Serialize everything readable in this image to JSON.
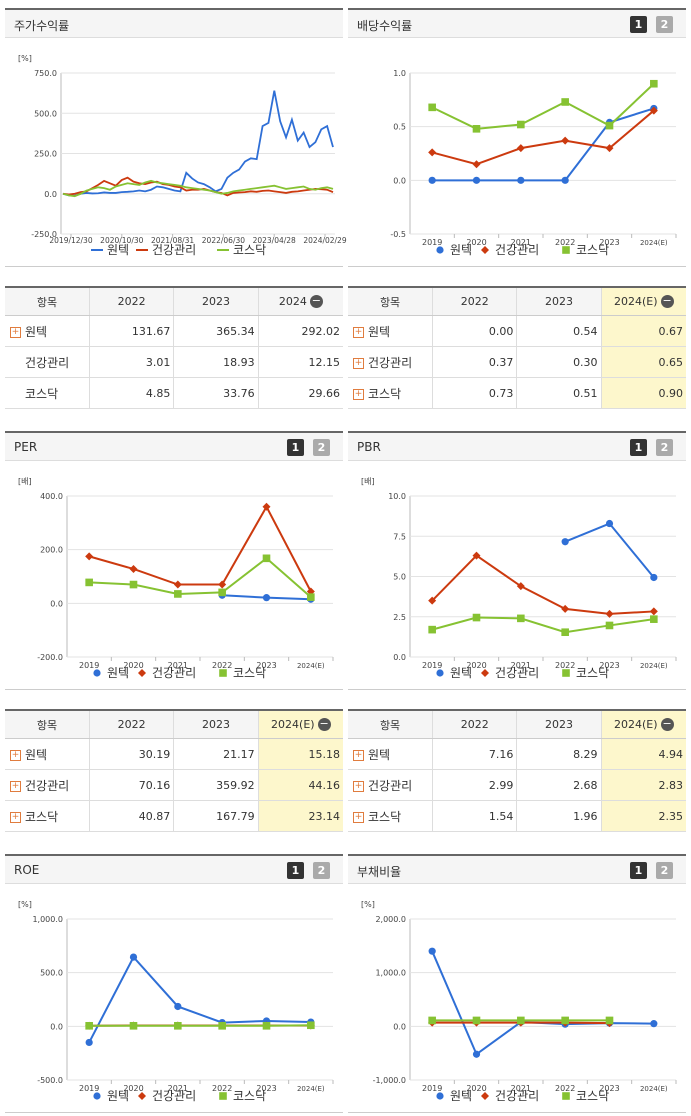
{
  "panels": [
    {
      "id": "stock",
      "title": "주가수익률",
      "buttons": []
    },
    {
      "id": "div",
      "title": "배당수익률",
      "buttons": [
        "1",
        "2"
      ]
    },
    {
      "id": "per",
      "title": "PER",
      "buttons": [
        "1",
        "2"
      ]
    },
    {
      "id": "pbr",
      "title": "PBR",
      "buttons": [
        "1",
        "2"
      ]
    },
    {
      "id": "roe",
      "title": "ROE",
      "buttons": [
        "1",
        "2"
      ]
    },
    {
      "id": "debt",
      "title": "부채비율",
      "buttons": [
        "1",
        "2"
      ]
    }
  ],
  "legend": [
    "원텍",
    "건강관리",
    "코스닥"
  ],
  "colors": {
    "원텍": "#2f6fd6",
    "건강관리": "#cc3a0f",
    "코스닥": "#86c232"
  },
  "chart_data": [
    {
      "id": "stock",
      "type": "line",
      "unit": "[%]",
      "ylim": [
        -250,
        750
      ],
      "yticks": [
        "750.0",
        "500.0",
        "250.0",
        "0.0",
        "-250.0"
      ],
      "x_labels": [
        "2019/12/30",
        "2020/10/30",
        "2021/08/31",
        "2022/06/30",
        "2023/04/28",
        "2024/02/29"
      ],
      "series": [
        {
          "name": "원텍",
          "values": [
            0,
            -10,
            -12,
            0,
            5,
            2,
            3,
            8,
            5,
            5,
            10,
            12,
            15,
            20,
            15,
            25,
            45,
            40,
            30,
            20,
            15,
            130,
            95,
            70,
            60,
            40,
            15,
            30,
            100,
            130,
            150,
            200,
            220,
            215,
            420,
            440,
            640,
            450,
            350,
            460,
            330,
            380,
            290,
            320,
            400,
            420,
            290
          ]
        },
        {
          "name": "건강관리",
          "values": [
            0,
            -5,
            0,
            10,
            15,
            35,
            55,
            80,
            65,
            50,
            85,
            100,
            75,
            65,
            60,
            70,
            75,
            60,
            55,
            45,
            40,
            20,
            25,
            25,
            30,
            20,
            10,
            5,
            -10,
            5,
            8,
            10,
            15,
            12,
            18,
            20,
            15,
            10,
            5,
            12,
            15,
            20,
            25,
            30,
            28,
            25,
            10
          ]
        },
        {
          "name": "코스닥",
          "values": [
            0,
            -10,
            -15,
            0,
            20,
            30,
            40,
            35,
            25,
            45,
            55,
            65,
            60,
            55,
            70,
            80,
            70,
            65,
            60,
            55,
            50,
            40,
            35,
            30,
            25,
            20,
            10,
            0,
            5,
            15,
            20,
            25,
            30,
            35,
            40,
            45,
            50,
            40,
            30,
            35,
            40,
            45,
            30,
            25,
            35,
            40,
            30
          ]
        }
      ]
    },
    {
      "id": "div",
      "type": "line",
      "ylim": [
        -0.5,
        1.0
      ],
      "yticks": [
        "1.0",
        "0.5",
        "0.0",
        "-0.5"
      ],
      "categories": [
        "2019",
        "2020",
        "2021",
        "2022",
        "2023",
        "2024(E)"
      ],
      "series": [
        {
          "name": "원텍",
          "values": [
            0.0,
            0.0,
            0.0,
            0.0,
            0.54,
            0.67
          ]
        },
        {
          "name": "건강관리",
          "values": [
            0.26,
            0.15,
            0.3,
            0.37,
            0.3,
            0.65
          ]
        },
        {
          "name": "코스닥",
          "values": [
            0.68,
            0.48,
            0.52,
            0.73,
            0.51,
            0.9
          ]
        }
      ]
    },
    {
      "id": "per",
      "type": "line",
      "unit": "[배]",
      "ylim": [
        -200,
        400
      ],
      "yticks": [
        "400.0",
        "200.0",
        "0.0",
        "-200.0"
      ],
      "categories": [
        "2019",
        "2020",
        "2021",
        "2022",
        "2023",
        "2024(E)"
      ],
      "series": [
        {
          "name": "원텍",
          "values": [
            null,
            null,
            null,
            30.19,
            21.17,
            15.18
          ]
        },
        {
          "name": "건강관리",
          "values": [
            175,
            128,
            70,
            70.16,
            359.92,
            44.16
          ]
        },
        {
          "name": "코스닥",
          "values": [
            78,
            70,
            35,
            40.87,
            167.79,
            23.14
          ]
        }
      ]
    },
    {
      "id": "pbr",
      "type": "line",
      "unit": "[배]",
      "ylim": [
        0,
        10
      ],
      "yticks": [
        "10.0",
        "7.5",
        "5.0",
        "2.5",
        "0.0"
      ],
      "categories": [
        "2019",
        "2020",
        "2021",
        "2022",
        "2023",
        "2024(E)"
      ],
      "series": [
        {
          "name": "원텍",
          "values": [
            null,
            null,
            null,
            7.16,
            8.29,
            4.94
          ]
        },
        {
          "name": "건강관리",
          "values": [
            3.5,
            6.3,
            4.4,
            2.99,
            2.68,
            2.83
          ]
        },
        {
          "name": "코스닥",
          "values": [
            1.7,
            2.45,
            2.4,
            1.54,
            1.96,
            2.35
          ]
        }
      ]
    },
    {
      "id": "roe",
      "type": "line",
      "unit": "[%]",
      "ylim": [
        -500,
        1000
      ],
      "yticks": [
        "1,000.0",
        "500.0",
        "0.0",
        "-500.0"
      ],
      "categories": [
        "2019",
        "2020",
        "2021",
        "2022",
        "2023",
        "2024(E)"
      ],
      "series": [
        {
          "name": "원텍",
          "values": [
            -150,
            645,
            185,
            35,
            50,
            40
          ]
        },
        {
          "name": "건강관리",
          "values": [
            5,
            8,
            8,
            8,
            8,
            8
          ]
        },
        {
          "name": "코스닥",
          "values": [
            5,
            5,
            5,
            5,
            5,
            10
          ]
        }
      ]
    },
    {
      "id": "debt",
      "type": "line",
      "unit": "[%]",
      "ylim": [
        -1000,
        2000
      ],
      "yticks": [
        "2,000.0",
        "1,000.0",
        "0.0",
        "-1,000.0"
      ],
      "categories": [
        "2019",
        "2020",
        "2021",
        "2022",
        "2023",
        "2024(E)"
      ],
      "series": [
        {
          "name": "원텍",
          "values": [
            1400,
            -520,
            80,
            40,
            60,
            50
          ]
        },
        {
          "name": "건강관리",
          "values": [
            70,
            70,
            70,
            70,
            60,
            null
          ]
        },
        {
          "name": "코스닥",
          "values": [
            110,
            110,
            110,
            110,
            110,
            null
          ]
        }
      ]
    }
  ],
  "tables": {
    "stock": {
      "headers": [
        "항목",
        "2022",
        "2023",
        "2024"
      ],
      "header_minus": true,
      "highlight_last": false,
      "rows": [
        {
          "name": "원텍",
          "plus": true,
          "values": [
            "131.67",
            "365.34",
            "292.02"
          ]
        },
        {
          "name": "건강관리",
          "plus": false,
          "values": [
            "3.01",
            "18.93",
            "12.15"
          ]
        },
        {
          "name": "코스닥",
          "plus": false,
          "values": [
            "4.85",
            "33.76",
            "29.66"
          ]
        }
      ]
    },
    "div": {
      "headers": [
        "항목",
        "2022",
        "2023",
        "2024(E)"
      ],
      "header_minus": true,
      "highlight_last": true,
      "rows": [
        {
          "name": "원텍",
          "plus": true,
          "values": [
            "0.00",
            "0.54",
            "0.67"
          ]
        },
        {
          "name": "건강관리",
          "plus": true,
          "values": [
            "0.37",
            "0.30",
            "0.65"
          ]
        },
        {
          "name": "코스닥",
          "plus": true,
          "values": [
            "0.73",
            "0.51",
            "0.90"
          ]
        }
      ]
    },
    "per": {
      "headers": [
        "항목",
        "2022",
        "2023",
        "2024(E)"
      ],
      "header_minus": true,
      "highlight_last": true,
      "rows": [
        {
          "name": "원텍",
          "plus": true,
          "values": [
            "30.19",
            "21.17",
            "15.18"
          ]
        },
        {
          "name": "건강관리",
          "plus": true,
          "values": [
            "70.16",
            "359.92",
            "44.16"
          ]
        },
        {
          "name": "코스닥",
          "plus": true,
          "values": [
            "40.87",
            "167.79",
            "23.14"
          ]
        }
      ]
    },
    "pbr": {
      "headers": [
        "항목",
        "2022",
        "2023",
        "2024(E)"
      ],
      "header_minus": true,
      "highlight_last": true,
      "rows": [
        {
          "name": "원텍",
          "plus": true,
          "values": [
            "7.16",
            "8.29",
            "4.94"
          ]
        },
        {
          "name": "건강관리",
          "plus": true,
          "values": [
            "2.99",
            "2.68",
            "2.83"
          ]
        },
        {
          "name": "코스닥",
          "plus": true,
          "values": [
            "1.54",
            "1.96",
            "2.35"
          ]
        }
      ]
    }
  }
}
